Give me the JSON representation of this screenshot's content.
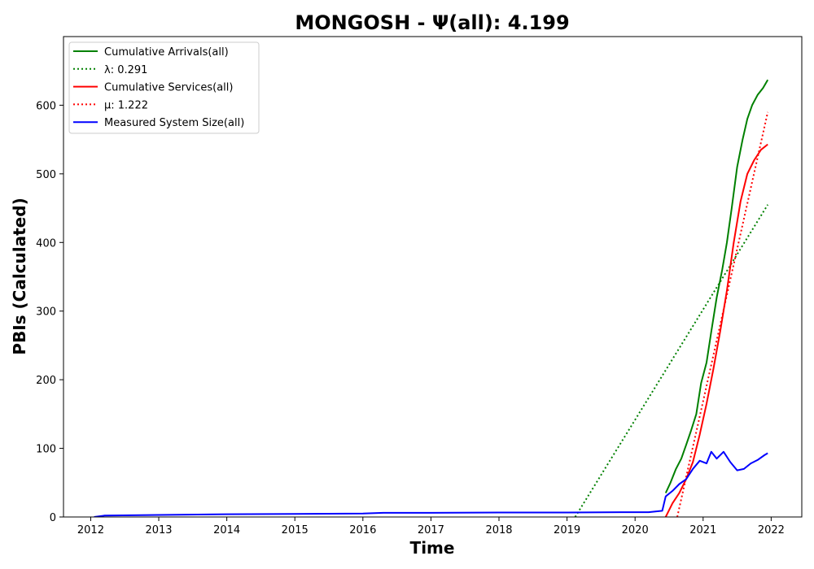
{
  "chart_data": {
    "type": "line",
    "title": "MONGOSH -  Ψ(all): 4.199",
    "xlabel": "Time",
    "ylabel": "PBIs (Calculated)",
    "xlim": [
      2011.6,
      2022.45
    ],
    "ylim": [
      0,
      700
    ],
    "xticks": [
      "2012",
      "2013",
      "2014",
      "2015",
      "2016",
      "2017",
      "2018",
      "2019",
      "2020",
      "2021",
      "2022"
    ],
    "yticks": [
      "0",
      "100",
      "200",
      "300",
      "400",
      "500",
      "600"
    ],
    "grid": false,
    "legend_position": "upper-left",
    "series": [
      {
        "name": "Cumulative Arrivals(all)",
        "color": "#008000",
        "style": "solid",
        "x": [
          2020.45,
          2020.52,
          2020.6,
          2020.68,
          2020.75,
          2020.82,
          2020.9,
          2020.97,
          2021.05,
          2021.12,
          2021.2,
          2021.28,
          2021.35,
          2021.42,
          2021.5,
          2021.58,
          2021.65,
          2021.72,
          2021.8,
          2021.88,
          2021.95
        ],
        "y": [
          35,
          50,
          70,
          85,
          105,
          125,
          150,
          195,
          225,
          270,
          320,
          360,
          400,
          450,
          510,
          550,
          580,
          600,
          615,
          625,
          637
        ]
      },
      {
        "name": "λ: 0.291",
        "color": "#008000",
        "style": "dotted",
        "x": [
          2019.12,
          2021.95
        ],
        "y": [
          0,
          455
        ]
      },
      {
        "name": "Cumulative Services(all)",
        "color": "#ff0000",
        "style": "solid",
        "x": [
          2020.45,
          2020.55,
          2020.65,
          2020.75,
          2020.85,
          2020.95,
          2021.05,
          2021.15,
          2021.25,
          2021.35,
          2021.45,
          2021.55,
          2021.65,
          2021.75,
          2021.85,
          2021.95
        ],
        "y": [
          0,
          20,
          35,
          55,
          80,
          120,
          165,
          215,
          270,
          330,
          400,
          460,
          500,
          520,
          535,
          543
        ]
      },
      {
        "name": "μ: 1.222",
        "color": "#ff0000",
        "style": "dotted",
        "x": [
          2020.62,
          2021.95
        ],
        "y": [
          0,
          590
        ]
      },
      {
        "name": "Measured System Size(all)",
        "color": "#0000ff",
        "style": "solid",
        "x": [
          2012.05,
          2012.2,
          2013.0,
          2014.0,
          2015.0,
          2016.0,
          2016.3,
          2017.0,
          2018.0,
          2019.0,
          2020.0,
          2020.2,
          2020.4,
          2020.45,
          2020.55,
          2020.65,
          2020.75,
          2020.85,
          2020.95,
          2021.05,
          2021.12,
          2021.2,
          2021.3,
          2021.4,
          2021.5,
          2021.6,
          2021.7,
          2021.8,
          2021.9,
          2021.95
        ],
        "y": [
          0,
          2,
          3,
          4,
          4.5,
          5,
          6,
          6,
          6.5,
          6.5,
          7,
          7,
          9,
          30,
          38,
          48,
          55,
          70,
          82,
          78,
          95,
          85,
          95,
          80,
          68,
          70,
          78,
          83,
          90,
          93
        ]
      }
    ]
  }
}
